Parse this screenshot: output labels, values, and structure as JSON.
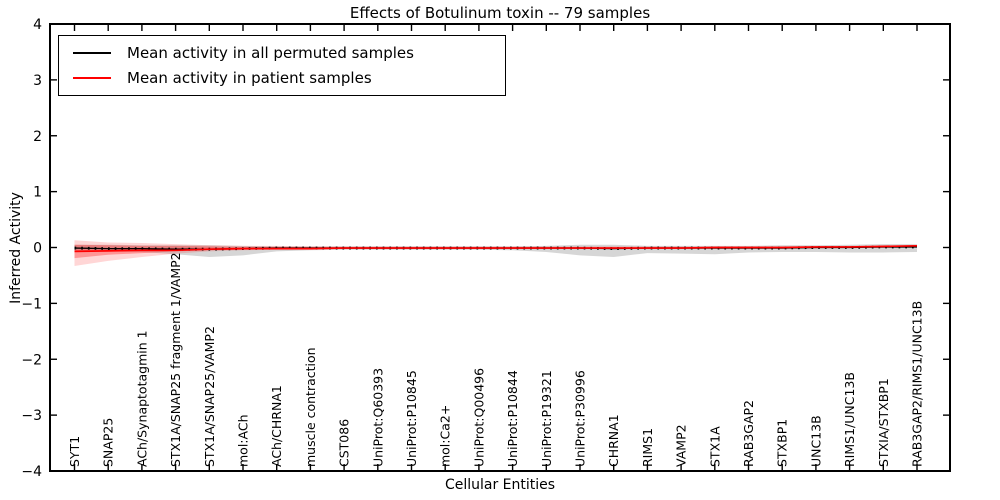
{
  "figure": {
    "title": "Effects of Botulinum toxin -- 79 samples",
    "xlabel": "Cellular Entities",
    "ylabel": "Inferred Activity"
  },
  "legend": {
    "entries": [
      {
        "label": "Mean activity in all permuted samples",
        "color": "#000000"
      },
      {
        "label": "Mean activity in patient samples",
        "color": "#ff0000"
      }
    ]
  },
  "chart_data": {
    "type": "line",
    "title": "Effects of Botulinum toxin -- 79 samples",
    "xlabel": "Cellular Entities",
    "ylabel": "Inferred Activity",
    "ylim": [
      -4,
      4
    ],
    "yticks": [
      -4,
      -3,
      -2,
      -1,
      0,
      1,
      2,
      3,
      4
    ],
    "grid": false,
    "legend_position": "upper left",
    "categories": [
      "SYT1",
      "SNAP25",
      "ACh/Synaptotagmin 1",
      "STX1A/SNAP25 fragment 1/VAMP2",
      "STX1A/SNAP25/VAMP2",
      "mol:ACh",
      "ACh/CHRNA1",
      "muscle contraction",
      "CST086",
      "UniProt:Q60393",
      "UniProt:P10845",
      "mol:Ca2+",
      "UniProt:Q00496",
      "UniProt:P10844",
      "UniProt:P19321",
      "UniProt:P30996",
      "CHRNA1",
      "RIMS1",
      "VAMP2",
      "STX1A",
      "RAB3GAP2",
      "STXBP1",
      "UNC13B",
      "RIMS1/UNC13B",
      "STXIA/STXBP1",
      "RAB3GAP2/RIMS1/UNC13B"
    ],
    "series": [
      {
        "name": "Mean activity in all permuted samples",
        "color": "#000000",
        "style": "solid-with-dot-markers",
        "values": [
          -0.01,
          -0.02,
          -0.02,
          -0.03,
          -0.03,
          -0.02,
          -0.01,
          -0.01,
          -0.01,
          -0.01,
          -0.01,
          -0.01,
          -0.01,
          -0.01,
          -0.01,
          -0.01,
          -0.02,
          -0.01,
          -0.01,
          -0.01,
          -0.01,
          -0.01,
          0.0,
          0.0,
          0.01,
          0.01
        ]
      },
      {
        "name": "Mean activity in patient samples",
        "color": "#ff0000",
        "style": "solid",
        "values": [
          -0.07,
          -0.06,
          -0.05,
          -0.05,
          -0.03,
          -0.02,
          -0.02,
          -0.02,
          -0.01,
          -0.01,
          -0.01,
          -0.01,
          -0.01,
          -0.01,
          -0.01,
          -0.01,
          -0.01,
          -0.01,
          -0.01,
          0.0,
          0.0,
          0.0,
          0.01,
          0.01,
          0.02,
          0.03
        ]
      }
    ],
    "uncertainty_bands": [
      {
        "name": "permuted-samples-spread",
        "color": "rgba(0,0,0,0.16)",
        "upper": [
          0.05,
          0.05,
          0.04,
          0.04,
          0.04,
          0.03,
          0.02,
          0.02,
          0.02,
          0.02,
          0.02,
          0.02,
          0.02,
          0.02,
          0.03,
          0.05,
          0.05,
          0.03,
          0.03,
          0.03,
          0.03,
          0.04,
          0.04,
          0.05,
          0.06,
          0.06
        ],
        "lower": [
          -0.06,
          -0.07,
          -0.08,
          -0.12,
          -0.17,
          -0.14,
          -0.07,
          -0.05,
          -0.04,
          -0.04,
          -0.04,
          -0.04,
          -0.04,
          -0.05,
          -0.08,
          -0.14,
          -0.17,
          -0.1,
          -0.11,
          -0.12,
          -0.09,
          -0.08,
          -0.08,
          -0.09,
          -0.09,
          -0.08
        ]
      },
      {
        "name": "patient-samples-spread-outer",
        "color": "rgba(255,0,0,0.16)",
        "upper": [
          0.13,
          0.09,
          0.08,
          0.06,
          0.04,
          0.03,
          0.03,
          0.02,
          0.02,
          0.02,
          0.02,
          0.02,
          0.02,
          0.02,
          0.02,
          0.02,
          0.02,
          0.02,
          0.02,
          0.02,
          0.02,
          0.02,
          0.02,
          0.03,
          0.03,
          0.04
        ],
        "lower": [
          -0.33,
          -0.24,
          -0.17,
          -0.11,
          -0.07,
          -0.05,
          -0.04,
          -0.04,
          -0.03,
          -0.03,
          -0.03,
          -0.03,
          -0.03,
          -0.03,
          -0.03,
          -0.03,
          -0.03,
          -0.03,
          -0.02,
          -0.02,
          -0.02,
          -0.02,
          -0.02,
          -0.01,
          -0.01,
          0.0
        ]
      },
      {
        "name": "patient-samples-spread-inner",
        "color": "rgba(255,0,0,0.30)",
        "upper": [
          0.05,
          0.04,
          0.03,
          0.03,
          0.02,
          0.01,
          0.01,
          0.01,
          0.01,
          0.01,
          0.01,
          0.01,
          0.01,
          0.01,
          0.01,
          0.01,
          0.01,
          0.01,
          0.01,
          0.01,
          0.01,
          0.01,
          0.02,
          0.02,
          0.03,
          0.04
        ],
        "lower": [
          -0.19,
          -0.13,
          -0.1,
          -0.07,
          -0.05,
          -0.04,
          -0.03,
          -0.03,
          -0.02,
          -0.02,
          -0.02,
          -0.02,
          -0.02,
          -0.02,
          -0.02,
          -0.02,
          -0.02,
          -0.02,
          -0.02,
          -0.01,
          -0.01,
          -0.01,
          -0.01,
          0.0,
          0.0,
          0.01
        ]
      }
    ]
  }
}
